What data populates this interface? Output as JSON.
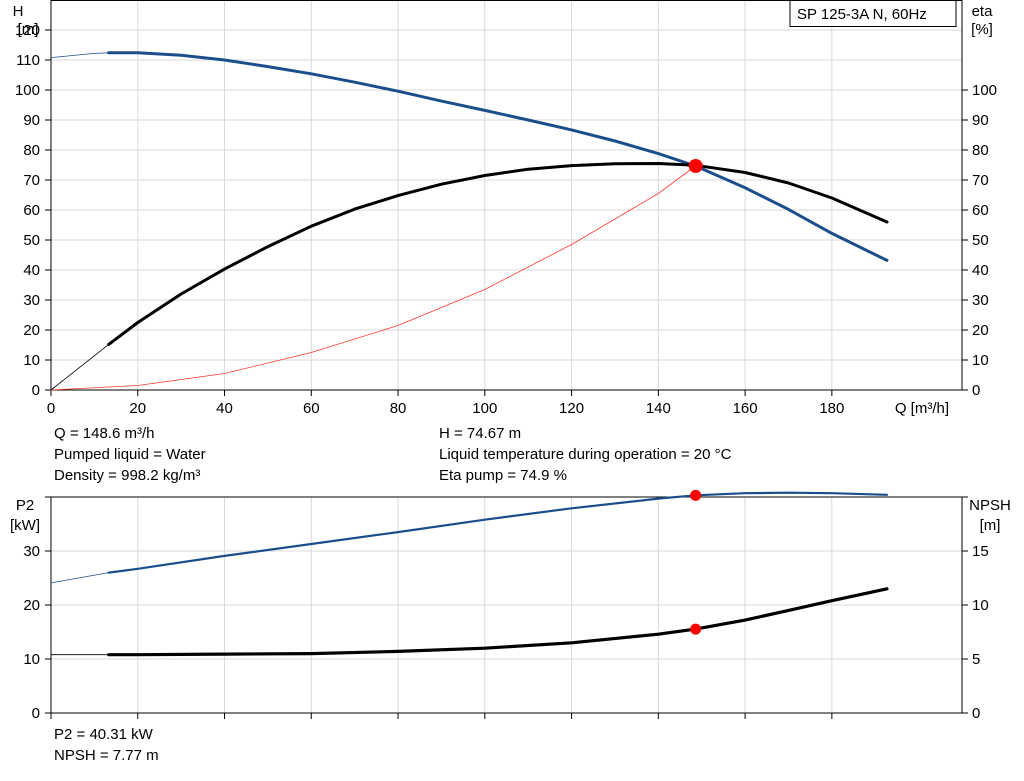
{
  "pump_label": "SP 125-3A N, 60Hz",
  "info": {
    "q": "Q = 148.6 m³/h",
    "liquid": "Pumped liquid = Water",
    "density": "Density = 998.2 kg/m³",
    "h": "H = 74.67 m",
    "temperature": "Liquid temperature during operation = 20 °C",
    "eta_pump": "Eta pump = 74.9 %",
    "p2": "P2 = 40.31 kW",
    "npsh": "NPSH = 7.77 m"
  },
  "colors": {
    "head_curve": "#1b4f8c",
    "efficiency_curve": "#000000",
    "system_curve": "#ff3b30",
    "duty_point": "#ff0000",
    "power_curve": "#1b4f8c",
    "npsh_curve": "#000000",
    "grid": "#d9d9d9"
  },
  "chart_data": [
    {
      "type": "line",
      "name": "head-efficiency",
      "xlabel": "Q [m³/h]",
      "ylabel_left": [
        "H",
        "[m]"
      ],
      "ylabel_right": [
        "eta",
        "[%]"
      ],
      "xlim": [
        0,
        210
      ],
      "ylim_left": [
        0,
        130
      ],
      "ylim_right": [
        0,
        130
      ],
      "x_ticks": [
        0,
        20,
        40,
        60,
        80,
        100,
        120,
        140,
        160,
        180
      ],
      "y_ticks_left": [
        0,
        10,
        20,
        30,
        40,
        50,
        60,
        70,
        80,
        90,
        100,
        110,
        120
      ],
      "y_ticks_right": [
        0,
        10,
        20,
        30,
        40,
        50,
        60,
        70,
        80,
        90,
        100
      ],
      "grid": true,
      "series": [
        {
          "key": "head",
          "axis": "left",
          "operating_range": [
            13.3,
            192.7
          ],
          "x": [
            0,
            10,
            13.3,
            20,
            30,
            40,
            50,
            60,
            70,
            80,
            90,
            100,
            110,
            120,
            130,
            140,
            148.6,
            160,
            170,
            180,
            192.7
          ],
          "y": [
            110.8,
            112.2,
            112.4,
            112.4,
            111.6,
            110,
            107.8,
            105.4,
            102.6,
            99.6,
            96.3,
            93.2,
            90,
            86.7,
            83,
            78.8,
            74.67,
            67.4,
            60.2,
            52.2,
            43.2
          ]
        },
        {
          "key": "eta",
          "axis": "right",
          "operating_range": [
            13.3,
            192.7
          ],
          "x": [
            0,
            13.3,
            20,
            30,
            40,
            50,
            60,
            70,
            80,
            90,
            100,
            110,
            120,
            130,
            140,
            148.6,
            160,
            170,
            180,
            192.7
          ],
          "y": [
            0,
            15.2,
            22.5,
            32,
            40.3,
            47.8,
            54.6,
            60.3,
            64.8,
            68.6,
            71.5,
            73.6,
            74.8,
            75.4,
            75.5,
            74.9,
            72.5,
            69,
            64,
            56
          ]
        },
        {
          "key": "system",
          "axis": "left",
          "x": [
            0,
            20,
            40,
            60,
            80,
            100,
            120,
            140,
            148.6
          ],
          "y": [
            0,
            1.5,
            5.5,
            12.5,
            21.5,
            33.5,
            48.5,
            65.5,
            74.67
          ]
        }
      ],
      "duty_point": {
        "x": 148.6,
        "y": 74.67
      }
    },
    {
      "type": "line",
      "name": "power-npsh",
      "ylabel_left": [
        "P2",
        "[kW]"
      ],
      "ylabel_right": [
        "NPSH",
        "[m]"
      ],
      "xlim": [
        0,
        210
      ],
      "ylim_left": [
        0,
        40
      ],
      "ylim_right": [
        0,
        20
      ],
      "y_ticks_left": [
        0,
        10,
        20,
        30
      ],
      "y_ticks_right": [
        0,
        5,
        10,
        15
      ],
      "grid": true,
      "series": [
        {
          "key": "p2",
          "axis": "left",
          "operating_range": [
            13.3,
            192.7
          ],
          "x": [
            0,
            13.3,
            20,
            40,
            60,
            80,
            100,
            120,
            140,
            148.6,
            160,
            170,
            180,
            192.7
          ],
          "y": [
            24.1,
            26,
            26.7,
            29.1,
            31.3,
            33.5,
            35.8,
            37.9,
            39.7,
            40.31,
            40.7,
            40.8,
            40.7,
            40.4
          ]
        },
        {
          "key": "npsh",
          "axis": "right",
          "operating_range": [
            13.3,
            192.7
          ],
          "x": [
            0,
            13.3,
            20,
            40,
            60,
            80,
            100,
            120,
            140,
            148.6,
            160,
            170,
            180,
            192.7
          ],
          "y": [
            5.4,
            5.4,
            5.4,
            5.45,
            5.5,
            5.7,
            6,
            6.5,
            7.3,
            7.77,
            8.6,
            9.5,
            10.4,
            11.5
          ]
        }
      ],
      "duty_points": {
        "x": 148.6,
        "p2": 40.31,
        "npsh": 7.77
      }
    }
  ]
}
